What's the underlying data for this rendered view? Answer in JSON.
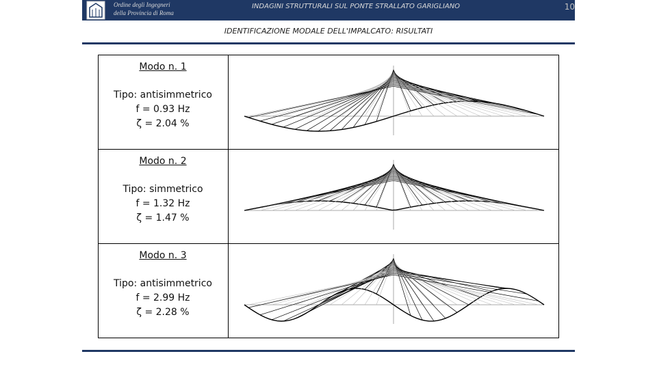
{
  "header": {
    "org_line1": "Ordine degli Ingegneri",
    "org_line2": "della Provincia di Roma",
    "title": "INDAGINI STRUTTURALI SUL PONTE STRALLATO GARIGLIANO",
    "page_number": "10"
  },
  "subtitle": "IDENTIFICAZIONE MODALE DELL'IMPALCATO: RISULTATI",
  "modes": [
    {
      "label": "Modo n. 1",
      "type": "Tipo: antisimmetrico",
      "frequency": "f = 0.93 Hz",
      "damping": "ζ = 2.04 %"
    },
    {
      "label": "Modo n. 2",
      "type": "Tipo: simmetrico",
      "frequency": "f = 1.32 Hz",
      "damping": "ζ = 1.47 %"
    },
    {
      "label": "Modo n. 3",
      "type": "Tipo: antisimmetrico",
      "frequency": "f = 2.99 Hz",
      "damping": "ζ = 2.28 %"
    }
  ]
}
